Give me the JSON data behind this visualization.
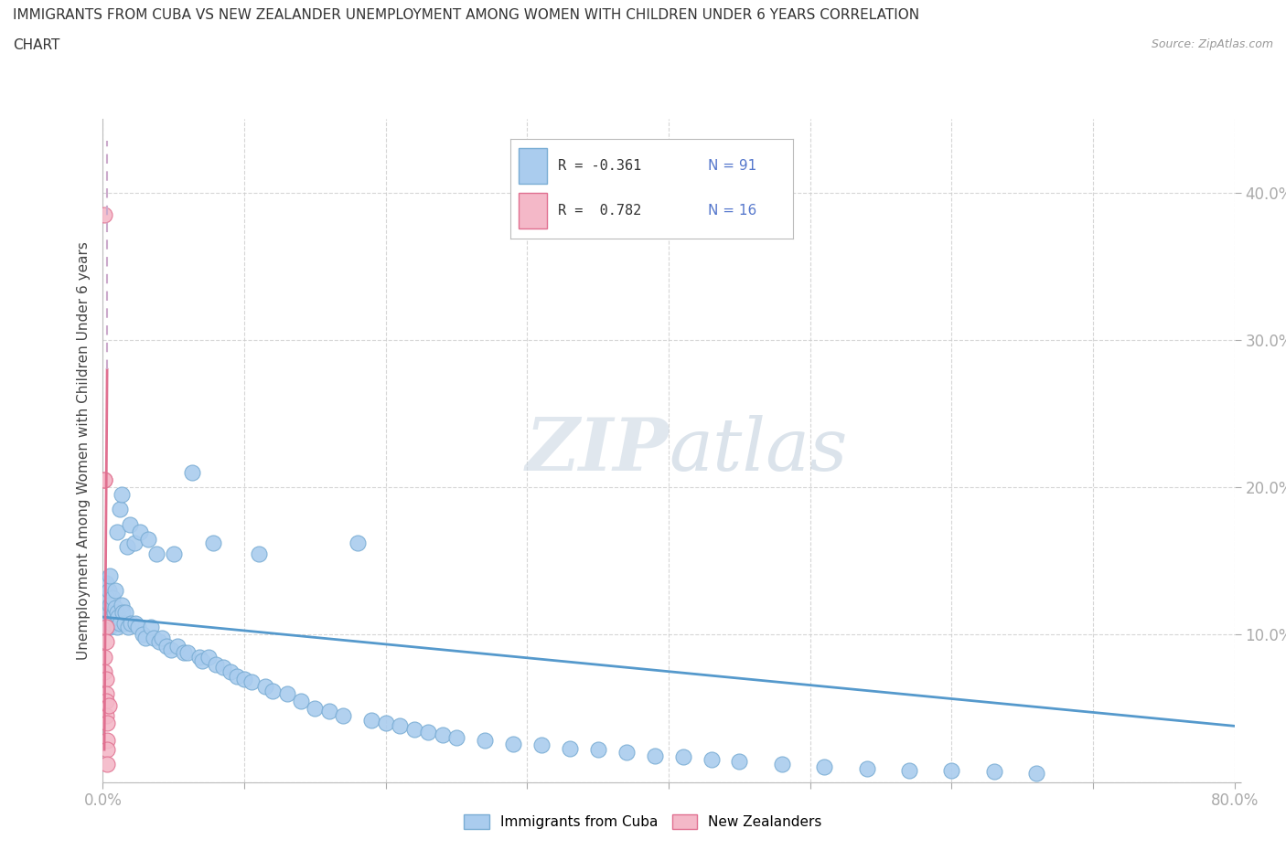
{
  "title_line1": "IMMIGRANTS FROM CUBA VS NEW ZEALANDER UNEMPLOYMENT AMONG WOMEN WITH CHILDREN UNDER 6 YEARS CORRELATION",
  "title_line2": "CHART",
  "source_text": "Source: ZipAtlas.com",
  "ylabel": "Unemployment Among Women with Children Under 6 years",
  "xlim": [
    0.0,
    0.8
  ],
  "ylim": [
    -0.02,
    0.45
  ],
  "plot_ylim": [
    0.0,
    0.45
  ],
  "cuba_color": "#aaccee",
  "cuba_edge": "#7aadd4",
  "nz_color": "#f4b8c8",
  "nz_edge": "#e07090",
  "trend_cuba_color": "#5599cc",
  "trend_nz_color": "#e07090",
  "trend_nz_dashed_color": "#ccaacc",
  "watermark_zip": "#d0dde8",
  "watermark_atlas": "#c8d4e0",
  "legend_r1": "R = -0.361",
  "legend_n1": "N = 91",
  "legend_r2": "R =  0.782",
  "legend_n2": "N = 16",
  "legend_r_color": "#333333",
  "legend_n_color": "#5577cc",
  "cuba_x": [
    0.002,
    0.003,
    0.003,
    0.004,
    0.004,
    0.005,
    0.005,
    0.005,
    0.006,
    0.007,
    0.007,
    0.008,
    0.009,
    0.009,
    0.01,
    0.01,
    0.01,
    0.011,
    0.012,
    0.012,
    0.013,
    0.013,
    0.014,
    0.015,
    0.016,
    0.017,
    0.018,
    0.019,
    0.02,
    0.022,
    0.023,
    0.025,
    0.026,
    0.028,
    0.03,
    0.032,
    0.034,
    0.036,
    0.038,
    0.04,
    0.042,
    0.045,
    0.048,
    0.05,
    0.053,
    0.057,
    0.06,
    0.063,
    0.068,
    0.07,
    0.075,
    0.078,
    0.08,
    0.085,
    0.09,
    0.095,
    0.1,
    0.105,
    0.11,
    0.115,
    0.12,
    0.13,
    0.14,
    0.15,
    0.16,
    0.17,
    0.18,
    0.19,
    0.2,
    0.21,
    0.22,
    0.23,
    0.24,
    0.25,
    0.27,
    0.29,
    0.31,
    0.33,
    0.35,
    0.37,
    0.39,
    0.41,
    0.43,
    0.45,
    0.48,
    0.51,
    0.54,
    0.57,
    0.6,
    0.63,
    0.66
  ],
  "cuba_y": [
    0.135,
    0.11,
    0.125,
    0.115,
    0.13,
    0.105,
    0.12,
    0.14,
    0.108,
    0.112,
    0.125,
    0.115,
    0.118,
    0.13,
    0.105,
    0.115,
    0.17,
    0.112,
    0.108,
    0.185,
    0.12,
    0.195,
    0.115,
    0.108,
    0.115,
    0.16,
    0.105,
    0.175,
    0.108,
    0.162,
    0.108,
    0.105,
    0.17,
    0.1,
    0.098,
    0.165,
    0.105,
    0.098,
    0.155,
    0.095,
    0.098,
    0.092,
    0.09,
    0.155,
    0.092,
    0.088,
    0.088,
    0.21,
    0.085,
    0.082,
    0.085,
    0.162,
    0.08,
    0.078,
    0.075,
    0.072,
    0.07,
    0.068,
    0.155,
    0.065,
    0.062,
    0.06,
    0.055,
    0.05,
    0.048,
    0.045,
    0.162,
    0.042,
    0.04,
    0.038,
    0.036,
    0.034,
    0.032,
    0.03,
    0.028,
    0.026,
    0.025,
    0.023,
    0.022,
    0.02,
    0.018,
    0.017,
    0.015,
    0.014,
    0.012,
    0.01,
    0.009,
    0.008,
    0.008,
    0.007,
    0.006
  ],
  "nz_x": [
    0.001,
    0.001,
    0.001,
    0.001,
    0.001,
    0.002,
    0.002,
    0.002,
    0.002,
    0.002,
    0.002,
    0.003,
    0.003,
    0.003,
    0.003,
    0.004
  ],
  "nz_y": [
    0.385,
    0.205,
    0.205,
    0.085,
    0.075,
    0.105,
    0.095,
    0.07,
    0.06,
    0.055,
    0.045,
    0.04,
    0.028,
    0.022,
    0.012,
    0.052
  ],
  "trend_cuba_x0": 0.0,
  "trend_cuba_y0": 0.112,
  "trend_cuba_x1": 0.8,
  "trend_cuba_y1": 0.038,
  "trend_nz_x0": 0.001,
  "trend_nz_y0": 0.022,
  "trend_nz_x1": 0.003,
  "trend_nz_y1": 0.28,
  "trend_nz_dash_x0": 0.003,
  "trend_nz_dash_y0": 0.28,
  "trend_nz_dash_x1": 0.003,
  "trend_nz_dash_y1": 0.435
}
